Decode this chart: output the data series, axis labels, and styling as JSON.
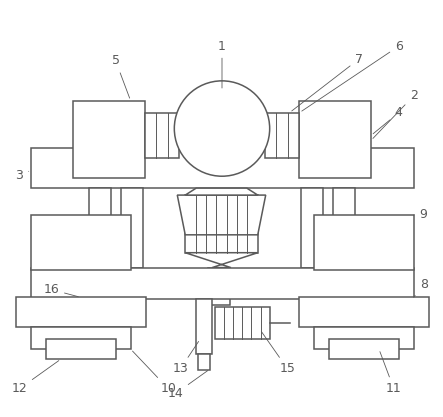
{
  "bg_color": "#ffffff",
  "line_color": "#5a5a5a",
  "line_width": 1.1,
  "thin_lw": 0.7,
  "figsize": [
    4.43,
    4.17
  ],
  "dpi": 100,
  "label_fontsize": 9
}
